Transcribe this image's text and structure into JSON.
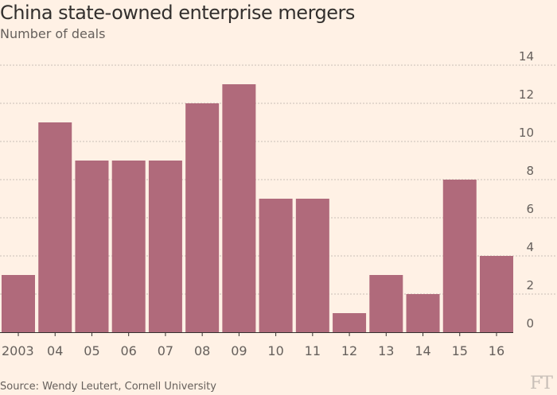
{
  "title": "China state-owned enterprise mergers",
  "subtitle": "Number of deals",
  "source": "Source: Wendy Leutert, Cornell University",
  "logo": "FT",
  "colors": {
    "background": "#fff1e5",
    "bar": "#b06a7b",
    "grid": "#c9c0b8",
    "text": "#66605c"
  },
  "chart_data": {
    "type": "bar",
    "categories": [
      "2003",
      "04",
      "05",
      "06",
      "07",
      "08",
      "09",
      "10",
      "11",
      "12",
      "13",
      "14",
      "15",
      "16"
    ],
    "values": [
      3,
      11,
      9,
      9,
      9,
      12,
      13,
      7,
      7,
      1,
      3,
      2,
      8,
      4
    ],
    "title": "China state-owned enterprise mergers",
    "subtitle": "Number of deals",
    "xlabel": "",
    "ylabel": "",
    "ylim": [
      0,
      14
    ],
    "yticks": [
      0,
      2,
      4,
      6,
      8,
      10,
      12,
      14
    ],
    "grid": true,
    "y_axis_side": "right"
  }
}
